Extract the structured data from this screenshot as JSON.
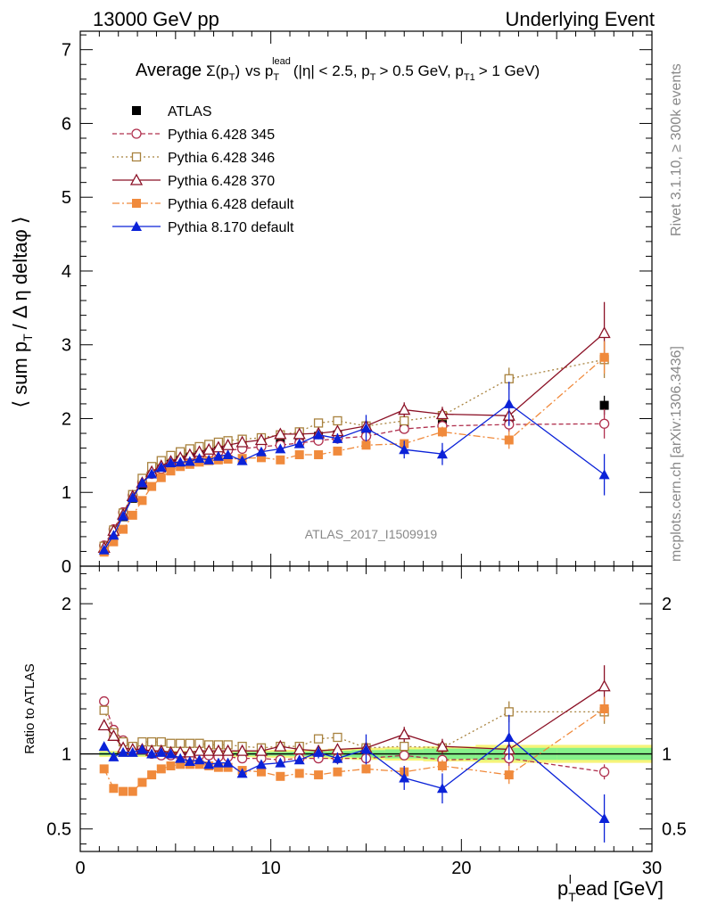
{
  "header": {
    "left": "13000 GeV pp",
    "right": "Underlying Event"
  },
  "side": {
    "rivet": "Rivet 3.1.10, ≥ 300k events",
    "mcplots": "mcplots.cern.ch [arXiv:1306.3436]"
  },
  "chart_data": [
    {
      "type": "line",
      "title_parts": {
        "average": "Average",
        "sigma": "Σ(p",
        "sigma_sub": "T",
        "sigma_close": ")",
        "vs": "vs p",
        "vs_sub": "T",
        "vs_sup": "lead",
        "cuts_1": "(|η| < 2.5, p",
        "cuts_sub1": "T",
        "cuts_2": "> 0.5 GeV, p",
        "cuts_sub2": "T1",
        "cuts_3": "> 1 GeV)"
      },
      "ylabel_parts": {
        "a": "⟨ sum p",
        "sub": "T",
        "b": "/ Δ η deltaφ ⟩"
      },
      "watermark": "ATLAS_2017_I1509919",
      "xlim": [
        0,
        30
      ],
      "ylim": [
        0,
        7.25
      ],
      "yticks": [
        0,
        1,
        2,
        3,
        4,
        5,
        6,
        7
      ],
      "x": [
        1.25,
        1.75,
        2.25,
        2.75,
        3.25,
        3.75,
        4.25,
        4.75,
        5.25,
        5.75,
        6.25,
        6.75,
        7.25,
        7.75,
        8.5,
        9.5,
        10.5,
        11.5,
        12.5,
        13.5,
        15,
        17,
        19,
        22.5,
        27.5
      ],
      "series": [
        {
          "name": "ATLAS",
          "color": "#000000",
          "marker": "square-filled",
          "line": "none",
          "values": [
            0.21,
            0.43,
            0.67,
            0.92,
            1.1,
            1.25,
            1.33,
            1.4,
            1.45,
            1.49,
            1.52,
            1.55,
            1.58,
            1.6,
            1.64,
            1.67,
            1.7,
            1.73,
            1.76,
            1.78,
            1.82,
            1.88,
            1.97,
            1.98,
            2.18
          ]
        },
        {
          "name": "Pythia 6.428 345",
          "color": "#b0304e",
          "marker": "circle-open",
          "line": "dashed",
          "values": [
            0.28,
            0.5,
            0.73,
            0.96,
            1.14,
            1.25,
            1.32,
            1.38,
            1.43,
            1.46,
            1.5,
            1.53,
            1.55,
            1.57,
            1.59,
            1.62,
            1.64,
            1.67,
            1.7,
            1.73,
            1.76,
            1.86,
            1.9,
            1.92,
            1.93
          ]
        },
        {
          "name": "Pythia 6.428 346",
          "color": "#a8823e",
          "marker": "square-open",
          "line": "dotted",
          "values": [
            0.27,
            0.49,
            0.72,
            0.97,
            1.19,
            1.35,
            1.43,
            1.5,
            1.55,
            1.59,
            1.62,
            1.65,
            1.68,
            1.7,
            1.72,
            1.74,
            1.78,
            1.82,
            1.94,
            1.97,
            1.9,
            1.97,
            2.04,
            2.54,
            2.8
          ]
        },
        {
          "name": "Pythia 6.428 370",
          "color": "#8b1126",
          "marker": "triangle-open",
          "line": "solid",
          "values": [
            0.25,
            0.48,
            0.7,
            0.95,
            1.13,
            1.28,
            1.36,
            1.42,
            1.47,
            1.51,
            1.55,
            1.58,
            1.61,
            1.64,
            1.68,
            1.71,
            1.79,
            1.79,
            1.8,
            1.83,
            1.9,
            2.12,
            2.06,
            2.04,
            3.16
          ]
        },
        {
          "name": "Pythia 6.428 default",
          "color": "#f08a3c",
          "marker": "square-filled",
          "line": "dashdot",
          "values": [
            0.19,
            0.33,
            0.5,
            0.69,
            0.89,
            1.08,
            1.2,
            1.29,
            1.35,
            1.38,
            1.41,
            1.43,
            1.44,
            1.45,
            1.46,
            1.47,
            1.44,
            1.51,
            1.51,
            1.56,
            1.64,
            1.66,
            1.82,
            1.71,
            2.83
          ]
        },
        {
          "name": "Pythia 8.170 default",
          "color": "#0b22d8",
          "marker": "triangle-filled",
          "line": "solid",
          "values": [
            0.22,
            0.42,
            0.68,
            0.93,
            1.13,
            1.25,
            1.34,
            1.4,
            1.41,
            1.42,
            1.46,
            1.44,
            1.49,
            1.51,
            1.43,
            1.55,
            1.59,
            1.66,
            1.78,
            1.73,
            1.87,
            1.58,
            1.52,
            2.2,
            1.24
          ]
        }
      ],
      "errors": {
        "ATLAS": [
          0.01,
          0.01,
          0.01,
          0.01,
          0.01,
          0.01,
          0.01,
          0.01,
          0.01,
          0.01,
          0.01,
          0.01,
          0.01,
          0.01,
          0.02,
          0.02,
          0.02,
          0.03,
          0.03,
          0.04,
          0.05,
          0.06,
          0.08,
          0.1,
          0.13
        ],
        "Pythia 6.428 345": [
          0.01,
          0.01,
          0.01,
          0.01,
          0.01,
          0.01,
          0.01,
          0.01,
          0.01,
          0.01,
          0.01,
          0.01,
          0.01,
          0.01,
          0.01,
          0.02,
          0.02,
          0.03,
          0.03,
          0.04,
          0.05,
          0.06,
          0.07,
          0.1,
          0.2
        ],
        "Pythia 6.428 346": [
          0.01,
          0.01,
          0.01,
          0.01,
          0.01,
          0.01,
          0.01,
          0.01,
          0.01,
          0.01,
          0.01,
          0.01,
          0.01,
          0.01,
          0.01,
          0.02,
          0.02,
          0.03,
          0.03,
          0.04,
          0.05,
          0.06,
          0.07,
          0.15,
          0.25
        ],
        "Pythia 6.428 370": [
          0.01,
          0.01,
          0.01,
          0.01,
          0.01,
          0.01,
          0.01,
          0.01,
          0.01,
          0.01,
          0.01,
          0.01,
          0.01,
          0.01,
          0.01,
          0.02,
          0.02,
          0.03,
          0.03,
          0.04,
          0.05,
          0.1,
          0.1,
          0.12,
          0.42
        ],
        "Pythia 6.428 default": [
          0.01,
          0.01,
          0.01,
          0.01,
          0.01,
          0.01,
          0.01,
          0.01,
          0.01,
          0.01,
          0.01,
          0.01,
          0.01,
          0.01,
          0.01,
          0.02,
          0.02,
          0.03,
          0.03,
          0.04,
          0.05,
          0.06,
          0.07,
          0.12,
          0.22
        ],
        "Pythia 8.170 default": [
          0.01,
          0.01,
          0.01,
          0.01,
          0.01,
          0.01,
          0.01,
          0.01,
          0.01,
          0.01,
          0.01,
          0.01,
          0.01,
          0.01,
          0.01,
          0.02,
          0.02,
          0.03,
          0.06,
          0.07,
          0.18,
          0.12,
          0.15,
          0.3,
          0.28
        ]
      }
    },
    {
      "type": "line",
      "ylabel": "Ratio to ATLAS",
      "xlabel_parts": {
        "a": "p",
        "sub": "T",
        "sup": "l",
        "b": "ead [GeV]"
      },
      "xlim": [
        0,
        30
      ],
      "ylim": [
        0.35,
        2.25
      ],
      "xticks": [
        0,
        10,
        20,
        30
      ],
      "yticks": [
        0.5,
        1,
        2
      ],
      "reference": 1,
      "band_inner_halfwidth": [
        0.01,
        0.01,
        0.01,
        0.01,
        0.01,
        0.01,
        0.01,
        0.01,
        0.01,
        0.01,
        0.01,
        0.01,
        0.01,
        0.01,
        0.012,
        0.013,
        0.013,
        0.015,
        0.017,
        0.02,
        0.025,
        0.03,
        0.035,
        0.04,
        0.04
      ],
      "band_outer_halfwidth": [
        0.02,
        0.02,
        0.02,
        0.02,
        0.02,
        0.02,
        0.02,
        0.02,
        0.02,
        0.02,
        0.02,
        0.02,
        0.02,
        0.02,
        0.022,
        0.024,
        0.026,
        0.028,
        0.03,
        0.035,
        0.04,
        0.045,
        0.05,
        0.06,
        0.06
      ],
      "band_colors": {
        "inner": "#86f08a",
        "outer": "#f6f47a"
      },
      "series": [
        {
          "name": "Pythia 6.428 345",
          "values": [
            1.35,
            1.16,
            1.09,
            1.04,
            1.04,
            1.0,
            0.99,
            0.99,
            0.99,
            0.98,
            0.99,
            0.99,
            0.98,
            0.98,
            0.97,
            0.97,
            0.96,
            0.97,
            0.97,
            0.97,
            0.97,
            0.99,
            0.96,
            0.97,
            0.88
          ]
        },
        {
          "name": "Pythia 6.428 346",
          "values": [
            1.29,
            1.14,
            1.08,
            1.05,
            1.08,
            1.08,
            1.08,
            1.07,
            1.07,
            1.07,
            1.07,
            1.06,
            1.06,
            1.06,
            1.05,
            1.04,
            1.05,
            1.05,
            1.1,
            1.11,
            1.04,
            1.05,
            1.04,
            1.28,
            1.28
          ]
        },
        {
          "name": "Pythia 6.428 370",
          "values": [
            1.19,
            1.12,
            1.04,
            1.03,
            1.03,
            1.02,
            1.02,
            1.01,
            1.01,
            1.01,
            1.02,
            1.02,
            1.02,
            1.02,
            1.02,
            1.02,
            1.05,
            1.03,
            1.02,
            1.03,
            1.04,
            1.13,
            1.05,
            1.03,
            1.45
          ]
        },
        {
          "name": "Pythia 6.428 default",
          "values": [
            0.9,
            0.77,
            0.75,
            0.75,
            0.81,
            0.86,
            0.9,
            0.92,
            0.93,
            0.93,
            0.93,
            0.92,
            0.91,
            0.91,
            0.89,
            0.88,
            0.85,
            0.87,
            0.86,
            0.88,
            0.9,
            0.88,
            0.92,
            0.86,
            1.3
          ]
        },
        {
          "name": "Pythia 8.170 default",
          "values": [
            1.05,
            0.98,
            1.01,
            1.01,
            1.03,
            1.0,
            1.01,
            1.0,
            0.97,
            0.95,
            0.96,
            0.93,
            0.94,
            0.94,
            0.87,
            0.93,
            0.94,
            0.96,
            1.01,
            0.97,
            1.03,
            0.84,
            0.77,
            1.11,
            0.57
          ]
        }
      ],
      "errors": {
        "Pythia 6.428 345": [
          0.01,
          0.01,
          0.01,
          0.01,
          0.01,
          0.01,
          0.01,
          0.01,
          0.01,
          0.01,
          0.01,
          0.01,
          0.01,
          0.01,
          0.01,
          0.01,
          0.01,
          0.02,
          0.02,
          0.02,
          0.03,
          0.03,
          0.03,
          0.05,
          0.05
        ],
        "Pythia 6.428 346": [
          0.01,
          0.01,
          0.01,
          0.01,
          0.01,
          0.01,
          0.01,
          0.01,
          0.01,
          0.01,
          0.01,
          0.01,
          0.01,
          0.01,
          0.01,
          0.01,
          0.01,
          0.02,
          0.02,
          0.02,
          0.03,
          0.03,
          0.03,
          0.07,
          0.08
        ],
        "Pythia 6.428 370": [
          0.01,
          0.01,
          0.01,
          0.01,
          0.01,
          0.01,
          0.01,
          0.01,
          0.01,
          0.01,
          0.01,
          0.01,
          0.01,
          0.01,
          0.01,
          0.01,
          0.01,
          0.02,
          0.02,
          0.02,
          0.03,
          0.05,
          0.05,
          0.06,
          0.14
        ],
        "Pythia 6.428 default": [
          0.01,
          0.01,
          0.01,
          0.01,
          0.01,
          0.01,
          0.01,
          0.01,
          0.01,
          0.01,
          0.01,
          0.01,
          0.01,
          0.01,
          0.01,
          0.01,
          0.01,
          0.02,
          0.02,
          0.02,
          0.03,
          0.03,
          0.04,
          0.06,
          0.08
        ],
        "Pythia 8.170 default": [
          0.01,
          0.01,
          0.01,
          0.01,
          0.01,
          0.01,
          0.01,
          0.01,
          0.01,
          0.01,
          0.01,
          0.01,
          0.01,
          0.01,
          0.01,
          0.01,
          0.01,
          0.02,
          0.04,
          0.04,
          0.1,
          0.08,
          0.1,
          0.15,
          0.16
        ]
      }
    }
  ]
}
